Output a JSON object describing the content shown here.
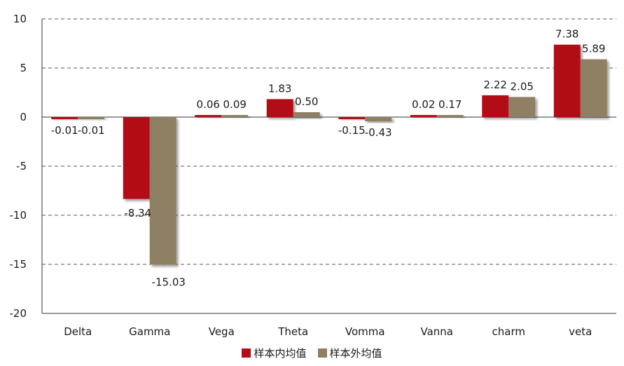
{
  "chart_data": {
    "type": "bar",
    "categories": [
      "Delta",
      "Gamma",
      "Vega",
      "Theta",
      "Vomma",
      "Vanna",
      "charm",
      "veta"
    ],
    "series": [
      {
        "name": "样本内均值",
        "color": "#b20e17",
        "values": [
          -0.01,
          -8.34,
          0.06,
          1.83,
          -0.15,
          0.02,
          2.22,
          7.38
        ],
        "labels": [
          "-0.01",
          "-8.34",
          "0.06",
          "1.83",
          "-0.15",
          "0.02",
          "2.22",
          "7.38"
        ]
      },
      {
        "name": "样本外均值",
        "color": "#8f7f64",
        "values": [
          -0.01,
          -15.03,
          0.09,
          0.5,
          -0.43,
          0.17,
          2.05,
          5.89
        ],
        "labels": [
          "-0.01",
          "-15.03",
          "0.09",
          "0.50",
          "-0.43",
          "0.17",
          "2.05",
          "5.89"
        ]
      }
    ],
    "ylim": [
      -20,
      10
    ],
    "yticks": [
      10,
      5,
      0,
      -5,
      -10,
      -15,
      -20
    ],
    "grid": "horizontal-dashed",
    "legend_position": "bottom",
    "title": "",
    "xlabel": "",
    "ylabel": ""
  }
}
